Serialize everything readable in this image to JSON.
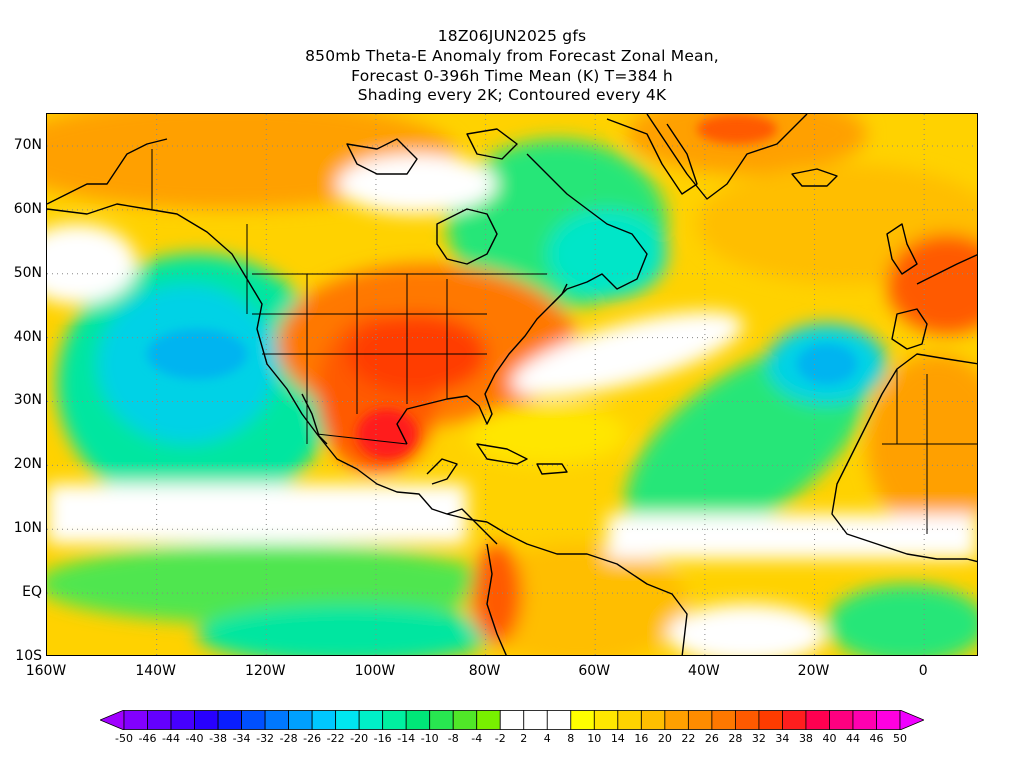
{
  "title": {
    "line1": "18Z06JUN2025 gfs",
    "line2": "850mb Theta-E Anomaly from Forecast Zonal Mean,",
    "line3": "Forecast 0-396h Time Mean (K) T=384 h",
    "line4": "Shading every 2K; Contoured every 4K"
  },
  "map": {
    "lat_labels": [
      "70N",
      "60N",
      "50N",
      "40N",
      "30N",
      "20N",
      "10N",
      "EQ",
      "10S"
    ],
    "lat_values": [
      70,
      60,
      50,
      40,
      30,
      20,
      10,
      0,
      -10
    ],
    "lon_labels": [
      "160W",
      "140W",
      "120W",
      "100W",
      "80W",
      "60W",
      "40W",
      "20W",
      "0"
    ],
    "lon_values": [
      -160,
      -140,
      -120,
      -100,
      -80,
      -60,
      -40,
      -20,
      0
    ],
    "lon_range": [
      -160,
      10
    ],
    "lat_range": [
      -10,
      75
    ],
    "gridlines": "dotted"
  },
  "colorbar": {
    "labels": [
      "-50",
      "-46",
      "-44",
      "-40",
      "-38",
      "-34",
      "-32",
      "-28",
      "-26",
      "-22",
      "-20",
      "-16",
      "-14",
      "-10",
      "-8",
      "-4",
      "-2",
      "2",
      "4",
      "8",
      "10",
      "14",
      "16",
      "20",
      "22",
      "26",
      "28",
      "32",
      "34",
      "38",
      "40",
      "44",
      "46",
      "50"
    ],
    "colors": [
      "#a000ff",
      "#8200ff",
      "#6400ff",
      "#4600ff",
      "#2800ff",
      "#0a1eff",
      "#0050ff",
      "#0078ff",
      "#00a0ff",
      "#00c8ff",
      "#00e6f0",
      "#00f0c8",
      "#00f0a0",
      "#00e678",
      "#28e650",
      "#50e628",
      "#78f000",
      "#ffffff",
      "#ffffff",
      "#ffffff",
      "#ffff00",
      "#ffe600",
      "#ffd200",
      "#ffbe00",
      "#ffa000",
      "#ff8c00",
      "#ff7800",
      "#ff5a00",
      "#ff3c00",
      "#ff1e1e",
      "#ff0050",
      "#ff0080",
      "#ff00b0",
      "#ff00e0",
      "#f000ff"
    ]
  }
}
